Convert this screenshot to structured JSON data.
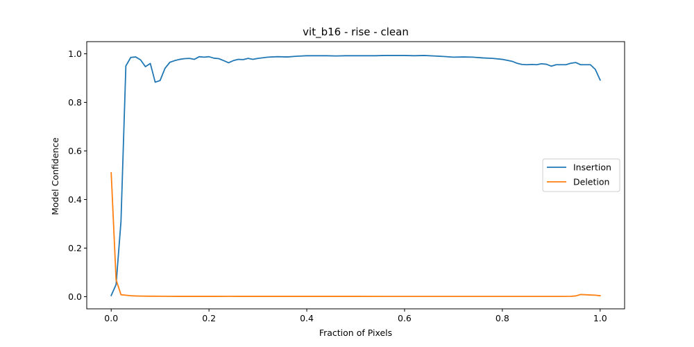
{
  "chart_data": {
    "type": "line",
    "title": "vit_b16 - rise - clean",
    "xlabel": "Fraction of Pixels",
    "ylabel": "Model Confidence",
    "xlim": [
      -0.05,
      1.05
    ],
    "ylim": [
      -0.05,
      1.05
    ],
    "xticks": [
      0.0,
      0.2,
      0.4,
      0.6,
      0.8,
      1.0
    ],
    "yticks": [
      0.0,
      0.2,
      0.4,
      0.6,
      0.8,
      1.0
    ],
    "xtick_labels": [
      "0.0",
      "0.2",
      "0.4",
      "0.6",
      "0.8",
      "1.0"
    ],
    "ytick_labels": [
      "0.0",
      "0.2",
      "0.4",
      "0.6",
      "0.8",
      "1.0"
    ],
    "grid": false,
    "legend_position": "center-right",
    "series": [
      {
        "name": "Insertion",
        "color": "#1f77b4",
        "x": [
          0.0,
          0.01,
          0.02,
          0.03,
          0.04,
          0.05,
          0.06,
          0.07,
          0.08,
          0.09,
          0.1,
          0.11,
          0.12,
          0.13,
          0.14,
          0.15,
          0.16,
          0.17,
          0.18,
          0.19,
          0.2,
          0.21,
          0.22,
          0.23,
          0.24,
          0.25,
          0.26,
          0.27,
          0.28,
          0.29,
          0.3,
          0.32,
          0.34,
          0.36,
          0.38,
          0.4,
          0.42,
          0.44,
          0.46,
          0.48,
          0.5,
          0.52,
          0.54,
          0.56,
          0.58,
          0.6,
          0.62,
          0.64,
          0.66,
          0.68,
          0.7,
          0.72,
          0.74,
          0.76,
          0.78,
          0.8,
          0.82,
          0.83,
          0.84,
          0.85,
          0.86,
          0.87,
          0.88,
          0.89,
          0.9,
          0.91,
          0.92,
          0.93,
          0.94,
          0.95,
          0.96,
          0.97,
          0.98,
          0.99,
          1.0
        ],
        "values": [
          0.005,
          0.05,
          0.31,
          0.95,
          0.985,
          0.987,
          0.975,
          0.947,
          0.96,
          0.883,
          0.89,
          0.94,
          0.965,
          0.972,
          0.977,
          0.98,
          0.981,
          0.977,
          0.988,
          0.986,
          0.988,
          0.982,
          0.98,
          0.972,
          0.963,
          0.972,
          0.977,
          0.976,
          0.981,
          0.977,
          0.981,
          0.986,
          0.988,
          0.987,
          0.99,
          0.992,
          0.992,
          0.992,
          0.991,
          0.992,
          0.992,
          0.992,
          0.992,
          0.993,
          0.993,
          0.993,
          0.992,
          0.993,
          0.991,
          0.989,
          0.986,
          0.987,
          0.986,
          0.983,
          0.981,
          0.977,
          0.969,
          0.961,
          0.956,
          0.955,
          0.956,
          0.955,
          0.959,
          0.957,
          0.949,
          0.955,
          0.955,
          0.955,
          0.961,
          0.964,
          0.955,
          0.955,
          0.955,
          0.936,
          0.892
        ]
      },
      {
        "name": "Deletion",
        "color": "#ff7f0e",
        "x": [
          0.0,
          0.01,
          0.02,
          0.03,
          0.04,
          0.05,
          0.06,
          0.08,
          0.1,
          0.12,
          0.14,
          0.16,
          0.18,
          0.2,
          0.22,
          0.24,
          0.26,
          0.28,
          0.3,
          0.35,
          0.4,
          0.45,
          0.5,
          0.55,
          0.6,
          0.65,
          0.7,
          0.75,
          0.8,
          0.85,
          0.9,
          0.92,
          0.94,
          0.95,
          0.96,
          0.97,
          0.98,
          0.99,
          1.0
        ],
        "values": [
          0.51,
          0.07,
          0.008,
          0.006,
          0.004,
          0.003,
          0.0025,
          0.002,
          0.0018,
          0.0015,
          0.0012,
          0.0012,
          0.0012,
          0.0012,
          0.0012,
          0.0015,
          0.0013,
          0.0012,
          0.0012,
          0.0012,
          0.0012,
          0.0012,
          0.0012,
          0.001,
          0.001,
          0.001,
          0.001,
          0.001,
          0.001,
          0.001,
          0.001,
          0.001,
          0.0015,
          0.003,
          0.009,
          0.008,
          0.007,
          0.006,
          0.004
        ]
      }
    ]
  }
}
